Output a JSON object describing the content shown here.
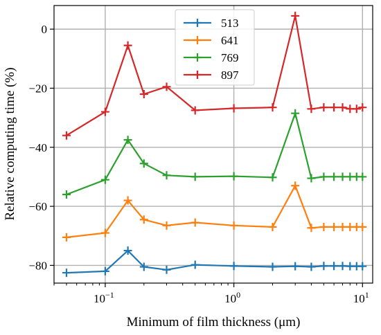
{
  "chart_data": {
    "type": "line",
    "xscale": "log",
    "xlim": [
      0.04,
      12
    ],
    "ylim": [
      -86,
      8
    ],
    "xlabel": "Minimum of film thickness (μm)",
    "ylabel": "Relative computing time (%)",
    "grid": true,
    "legend_position": "top-center",
    "x": [
      0.05,
      0.1,
      0.15,
      0.2,
      0.3,
      0.5,
      1,
      2,
      3,
      4,
      5,
      6,
      7,
      8,
      9,
      10
    ],
    "x_ticks": [
      {
        "value": 0.1,
        "base": "10",
        "exp": "−1"
      },
      {
        "value": 1,
        "base": "10",
        "exp": "0"
      },
      {
        "value": 10,
        "base": "10",
        "exp": "1"
      }
    ],
    "y_ticks": [
      {
        "value": 0,
        "label": "0"
      },
      {
        "value": -20,
        "label": "−20"
      },
      {
        "value": -40,
        "label": "−40"
      },
      {
        "value": -60,
        "label": "−60"
      },
      {
        "value": -80,
        "label": "−80"
      }
    ],
    "series": [
      {
        "name": "513",
        "color": "#1f77b4",
        "values": [
          -82.5,
          -82,
          -75,
          -80.5,
          -81.5,
          -79.8,
          -80.2,
          -80.5,
          -80.3,
          -80.5,
          -80.2,
          -80.2,
          -80.2,
          -80.3,
          -80.3,
          -80.3
        ]
      },
      {
        "name": "641",
        "color": "#ff7f0e",
        "values": [
          -70.5,
          -69,
          -58,
          -64.5,
          -66.5,
          -65.5,
          -66.5,
          -67,
          -53,
          -67.3,
          -67,
          -67,
          -67,
          -67,
          -67,
          -67
        ]
      },
      {
        "name": "769",
        "color": "#2ca02c",
        "values": [
          -56,
          -51,
          -37.5,
          -45.5,
          -49.5,
          -50,
          -49.8,
          -50.2,
          -28.5,
          -50.5,
          -50,
          -50,
          -50,
          -50,
          -50,
          -50
        ]
      },
      {
        "name": "897",
        "color": "#d62728",
        "values": [
          -36,
          -28,
          -5.5,
          -22,
          -19.5,
          -27.5,
          -26.8,
          -26.5,
          4.5,
          -27,
          -26.5,
          -26.5,
          -26.5,
          -27,
          -27,
          -26.5
        ]
      }
    ]
  }
}
